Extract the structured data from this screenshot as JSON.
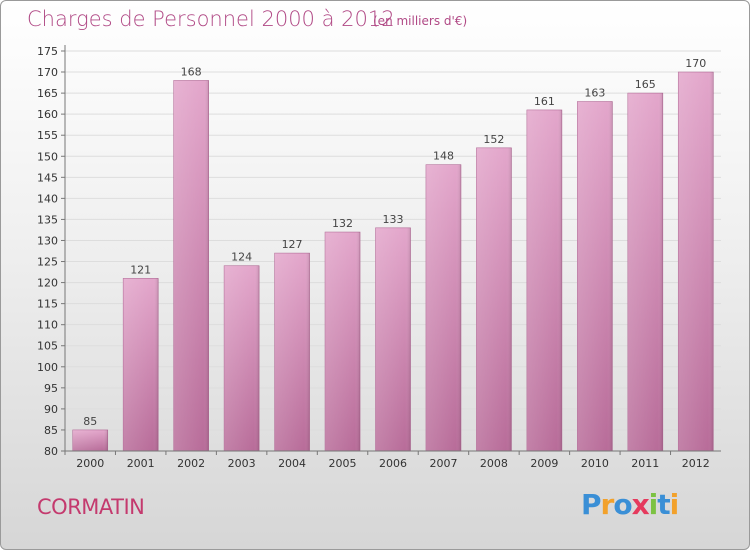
{
  "title": "Charges de Personnel 2000 à 2012",
  "subtitle": "(en milliers d'€)",
  "commune": "CORMATIN",
  "logo": {
    "text": "Proxiti",
    "letters": [
      {
        "char": "P",
        "color": "#3a8fd6"
      },
      {
        "char": "r",
        "color": "#f2a12b"
      },
      {
        "char": "o",
        "color": "#3a8fd6"
      },
      {
        "char": "x",
        "color": "#e53a5d"
      },
      {
        "char": "i",
        "color": "#7cc242"
      },
      {
        "char": "t",
        "color": "#3a8fd6"
      },
      {
        "char": "i",
        "color": "#f2a12b"
      }
    ]
  },
  "colors": {
    "title": "#b14a86",
    "bar_top": "#e3a6cb",
    "bar_bottom": "#b86c99",
    "gridline": "#dddddd"
  },
  "chart_data": {
    "type": "bar",
    "title": "Charges de Personnel 2000 à 2012",
    "subtitle": "(en milliers d'€)",
    "categories": [
      "2000",
      "2001",
      "2002",
      "2003",
      "2004",
      "2005",
      "2006",
      "2007",
      "2008",
      "2009",
      "2010",
      "2011",
      "2012"
    ],
    "values": [
      85,
      121,
      168,
      124,
      127,
      132,
      133,
      148,
      152,
      161,
      163,
      165,
      170
    ],
    "ylim": [
      80,
      175
    ],
    "yticks": [
      80,
      85,
      90,
      95,
      100,
      105,
      110,
      115,
      120,
      125,
      130,
      135,
      140,
      145,
      150,
      155,
      160,
      165,
      170,
      175
    ],
    "grid": true,
    "data_labels": true
  }
}
